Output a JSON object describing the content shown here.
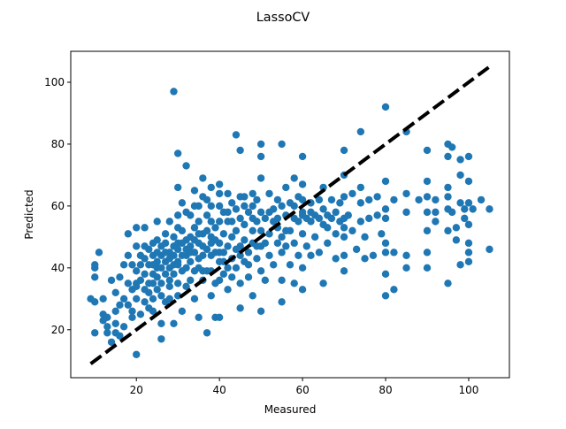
{
  "chart_data": {
    "type": "scatter",
    "title": "LassoCV",
    "xlabel": "Measured",
    "ylabel": "Predicted",
    "xlim": [
      4.2,
      109.8
    ],
    "ylim": [
      4.5,
      110.0
    ],
    "xticks": [
      20,
      40,
      60,
      80,
      100
    ],
    "yticks": [
      20,
      40,
      60,
      80,
      100
    ],
    "grid": false,
    "marker_color": "#1f77b4",
    "reference_line": {
      "style": "dashed",
      "color": "#000000",
      "x": [
        9,
        105
      ],
      "y": [
        9,
        105
      ]
    },
    "points": [
      [
        9,
        30
      ],
      [
        10,
        29
      ],
      [
        10,
        19
      ],
      [
        10,
        37
      ],
      [
        10,
        40
      ],
      [
        10,
        41
      ],
      [
        11,
        45
      ],
      [
        12,
        25
      ],
      [
        12,
        23
      ],
      [
        12,
        30
      ],
      [
        13,
        21
      ],
      [
        13,
        19
      ],
      [
        13,
        24
      ],
      [
        14,
        16
      ],
      [
        14,
        36
      ],
      [
        15,
        26
      ],
      [
        15,
        32
      ],
      [
        15,
        22
      ],
      [
        15,
        19
      ],
      [
        16,
        28
      ],
      [
        16,
        37
      ],
      [
        16,
        18
      ],
      [
        17,
        41
      ],
      [
        17,
        30
      ],
      [
        17,
        21
      ],
      [
        18,
        35
      ],
      [
        18,
        28
      ],
      [
        18,
        44
      ],
      [
        18,
        51
      ],
      [
        19,
        41
      ],
      [
        19,
        33
      ],
      [
        19,
        26
      ],
      [
        19,
        24
      ],
      [
        20,
        53
      ],
      [
        20,
        39
      ],
      [
        20,
        47
      ],
      [
        20,
        34
      ],
      [
        20,
        30
      ],
      [
        20,
        12
      ],
      [
        21,
        44
      ],
      [
        21,
        25
      ],
      [
        21,
        36
      ],
      [
        22,
        38
      ],
      [
        22,
        43
      ],
      [
        22,
        53
      ],
      [
        22,
        29
      ],
      [
        23,
        46
      ],
      [
        23,
        35
      ],
      [
        23,
        41
      ],
      [
        23,
        32
      ],
      [
        24,
        48
      ],
      [
        24,
        38
      ],
      [
        24,
        30
      ],
      [
        24,
        44
      ],
      [
        24,
        26
      ],
      [
        25,
        37
      ],
      [
        25,
        40
      ],
      [
        25,
        55
      ],
      [
        25,
        33
      ],
      [
        25,
        49
      ],
      [
        26,
        22
      ],
      [
        26,
        17
      ],
      [
        26,
        44
      ],
      [
        26,
        35
      ],
      [
        26,
        47
      ],
      [
        27,
        42
      ],
      [
        27,
        51
      ],
      [
        27,
        38
      ],
      [
        27,
        29
      ],
      [
        28,
        55
      ],
      [
        28,
        40
      ],
      [
        28,
        45
      ],
      [
        28,
        30
      ],
      [
        28,
        36
      ],
      [
        29,
        97
      ],
      [
        29,
        44
      ],
      [
        29,
        50
      ],
      [
        29,
        38
      ],
      [
        29,
        22
      ],
      [
        30,
        77
      ],
      [
        30,
        46
      ],
      [
        30,
        57
      ],
      [
        30,
        42
      ],
      [
        30,
        66
      ],
      [
        30,
        35
      ],
      [
        30,
        48
      ],
      [
        31,
        52
      ],
      [
        31,
        39
      ],
      [
        31,
        26
      ],
      [
        31,
        61
      ],
      [
        32,
        44
      ],
      [
        32,
        49
      ],
      [
        32,
        73
      ],
      [
        32,
        40
      ],
      [
        33,
        57
      ],
      [
        33,
        47
      ],
      [
        33,
        36
      ],
      [
        33,
        42
      ],
      [
        34,
        53
      ],
      [
        34,
        65
      ],
      [
        34,
        45
      ],
      [
        34,
        30
      ],
      [
        35,
        55
      ],
      [
        35,
        40
      ],
      [
        35,
        60
      ],
      [
        35,
        48
      ],
      [
        35,
        24
      ],
      [
        36,
        69
      ],
      [
        36,
        44
      ],
      [
        36,
        51
      ],
      [
        36,
        36
      ],
      [
        37,
        19
      ],
      [
        37,
        57
      ],
      [
        37,
        46
      ],
      [
        37,
        62
      ],
      [
        38,
        39
      ],
      [
        38,
        50
      ],
      [
        38,
        55
      ],
      [
        38,
        31
      ],
      [
        38,
        66
      ],
      [
        39,
        45
      ],
      [
        39,
        53
      ],
      [
        39,
        24
      ],
      [
        40,
        60
      ],
      [
        40,
        48
      ],
      [
        40,
        42
      ],
      [
        40,
        36
      ],
      [
        40,
        67
      ],
      [
        40,
        24
      ],
      [
        41,
        51
      ],
      [
        41,
        45
      ],
      [
        41,
        38
      ],
      [
        42,
        58
      ],
      [
        42,
        55
      ],
      [
        42,
        47
      ],
      [
        42,
        33
      ],
      [
        43,
        50
      ],
      [
        43,
        61
      ],
      [
        43,
        43
      ],
      [
        44,
        83
      ],
      [
        44,
        52
      ],
      [
        44,
        40
      ],
      [
        45,
        63
      ],
      [
        45,
        47
      ],
      [
        45,
        35
      ],
      [
        45,
        56
      ],
      [
        45,
        78
      ],
      [
        45,
        27
      ],
      [
        46,
        49
      ],
      [
        46,
        60
      ],
      [
        46,
        42
      ],
      [
        47,
        58
      ],
      [
        47,
        45
      ],
      [
        47,
        37
      ],
      [
        48,
        52
      ],
      [
        48,
        64
      ],
      [
        48,
        48
      ],
      [
        48,
        31
      ],
      [
        49,
        55
      ],
      [
        49,
        43
      ],
      [
        49,
        62
      ],
      [
        50,
        76
      ],
      [
        50,
        47
      ],
      [
        50,
        58
      ],
      [
        50,
        26
      ],
      [
        50,
        39
      ],
      [
        50,
        52
      ],
      [
        50,
        69
      ],
      [
        50,
        80
      ],
      [
        51,
        56
      ],
      [
        51,
        48
      ],
      [
        51,
        36
      ],
      [
        52,
        51
      ],
      [
        52,
        64
      ],
      [
        52,
        44
      ],
      [
        53,
        55
      ],
      [
        53,
        59
      ],
      [
        53,
        41
      ],
      [
        54,
        48
      ],
      [
        54,
        62
      ],
      [
        54,
        53
      ],
      [
        55,
        80
      ],
      [
        55,
        60
      ],
      [
        55,
        45
      ],
      [
        55,
        36
      ],
      [
        55,
        29
      ],
      [
        55,
        50
      ],
      [
        56,
        57
      ],
      [
        56,
        47
      ],
      [
        56,
        66
      ],
      [
        57,
        52
      ],
      [
        57,
        41
      ],
      [
        57,
        61
      ],
      [
        58,
        48
      ],
      [
        58,
        56
      ],
      [
        58,
        35
      ],
      [
        58,
        69
      ],
      [
        59,
        55
      ],
      [
        59,
        44
      ],
      [
        59,
        63
      ],
      [
        60,
        76
      ],
      [
        60,
        51
      ],
      [
        60,
        58
      ],
      [
        60,
        40
      ],
      [
        60,
        62
      ],
      [
        60,
        33
      ],
      [
        60,
        67
      ],
      [
        61,
        56
      ],
      [
        61,
        47
      ],
      [
        62,
        55
      ],
      [
        62,
        61
      ],
      [
        62,
        44
      ],
      [
        63,
        57
      ],
      [
        63,
        50
      ],
      [
        64,
        62
      ],
      [
        64,
        45
      ],
      [
        65,
        54
      ],
      [
        65,
        66
      ],
      [
        65,
        35
      ],
      [
        65,
        59
      ],
      [
        66,
        48
      ],
      [
        66,
        57
      ],
      [
        67,
        56
      ],
      [
        67,
        62
      ],
      [
        68,
        51
      ],
      [
        68,
        43
      ],
      [
        69,
        55
      ],
      [
        69,
        61
      ],
      [
        70,
        78
      ],
      [
        70,
        63
      ],
      [
        70,
        50
      ],
      [
        70,
        44
      ],
      [
        70,
        56
      ],
      [
        70,
        39
      ],
      [
        70,
        70
      ],
      [
        71,
        57
      ],
      [
        72,
        52
      ],
      [
        72,
        64
      ],
      [
        73,
        46
      ],
      [
        74,
        84
      ],
      [
        74,
        66
      ],
      [
        74,
        55
      ],
      [
        74,
        61
      ],
      [
        75,
        50
      ],
      [
        75,
        43
      ],
      [
        76,
        62
      ],
      [
        76,
        56
      ],
      [
        77,
        44
      ],
      [
        78,
        57
      ],
      [
        78,
        63
      ],
      [
        79,
        51
      ],
      [
        80,
        92
      ],
      [
        80,
        68
      ],
      [
        80,
        59
      ],
      [
        80,
        45
      ],
      [
        80,
        38
      ],
      [
        80,
        31
      ],
      [
        80,
        56
      ],
      [
        80,
        48
      ],
      [
        82,
        62
      ],
      [
        82,
        45
      ],
      [
        82,
        33
      ],
      [
        85,
        84
      ],
      [
        85,
        58
      ],
      [
        85,
        44
      ],
      [
        85,
        40
      ],
      [
        85,
        64
      ],
      [
        88,
        62
      ],
      [
        90,
        78
      ],
      [
        90,
        58
      ],
      [
        90,
        45
      ],
      [
        90,
        63
      ],
      [
        90,
        68
      ],
      [
        90,
        52
      ],
      [
        90,
        40
      ],
      [
        92,
        58
      ],
      [
        92,
        55
      ],
      [
        92,
        62
      ],
      [
        95,
        80
      ],
      [
        95,
        63
      ],
      [
        95,
        59
      ],
      [
        95,
        35
      ],
      [
        95,
        52
      ],
      [
        95,
        76
      ],
      [
        95,
        66
      ],
      [
        96,
        79
      ],
      [
        96,
        58
      ],
      [
        97,
        53
      ],
      [
        97,
        49
      ],
      [
        98,
        61
      ],
      [
        98,
        70
      ],
      [
        98,
        41
      ],
      [
        98,
        75
      ],
      [
        99,
        59
      ],
      [
        99,
        56
      ],
      [
        100,
        54
      ],
      [
        100,
        48
      ],
      [
        100,
        45
      ],
      [
        100,
        42
      ],
      [
        100,
        68
      ],
      [
        100,
        61
      ],
      [
        100,
        76
      ],
      [
        101,
        59
      ],
      [
        103,
        62
      ],
      [
        105,
        59
      ],
      [
        105,
        46
      ],
      [
        20,
        35
      ],
      [
        21,
        41
      ],
      [
        22,
        47
      ],
      [
        23,
        27
      ],
      [
        24,
        35
      ],
      [
        25,
        42
      ],
      [
        26,
        31
      ],
      [
        27,
        45
      ],
      [
        28,
        34
      ],
      [
        29,
        41
      ],
      [
        30,
        31
      ],
      [
        31,
        44
      ],
      [
        32,
        34
      ],
      [
        33,
        50
      ],
      [
        34,
        39
      ],
      [
        35,
        43
      ],
      [
        36,
        47
      ],
      [
        37,
        39
      ],
      [
        38,
        44
      ],
      [
        39,
        35
      ],
      [
        40,
        55
      ],
      [
        41,
        42
      ],
      [
        42,
        40
      ],
      [
        43,
        37
      ],
      [
        44,
        46
      ],
      [
        45,
        44
      ],
      [
        46,
        54
      ],
      [
        47,
        41
      ],
      [
        48,
        56
      ],
      [
        49,
        47
      ],
      [
        25,
        45
      ],
      [
        27,
        48
      ],
      [
        29,
        47
      ],
      [
        31,
        48
      ],
      [
        33,
        45
      ],
      [
        35,
        51
      ],
      [
        37,
        52
      ],
      [
        39,
        49
      ],
      [
        41,
        58
      ],
      [
        43,
        55
      ],
      [
        30,
        53
      ],
      [
        32,
        58
      ],
      [
        34,
        60
      ],
      [
        36,
        63
      ],
      [
        38,
        60
      ],
      [
        40,
        64
      ],
      [
        42,
        64
      ],
      [
        44,
        59
      ],
      [
        46,
        63
      ],
      [
        48,
        60
      ],
      [
        52,
        58
      ],
      [
        54,
        56
      ],
      [
        56,
        52
      ],
      [
        58,
        60
      ],
      [
        60,
        57
      ],
      [
        62,
        58
      ],
      [
        64,
        56
      ],
      [
        66,
        53
      ],
      [
        68,
        58
      ],
      [
        70,
        53
      ],
      [
        22,
        33
      ],
      [
        24,
        41
      ],
      [
        26,
        40
      ],
      [
        28,
        43
      ],
      [
        30,
        41
      ],
      [
        32,
        46
      ],
      [
        34,
        49
      ],
      [
        36,
        39
      ],
      [
        38,
        48
      ],
      [
        40,
        45
      ]
    ]
  }
}
